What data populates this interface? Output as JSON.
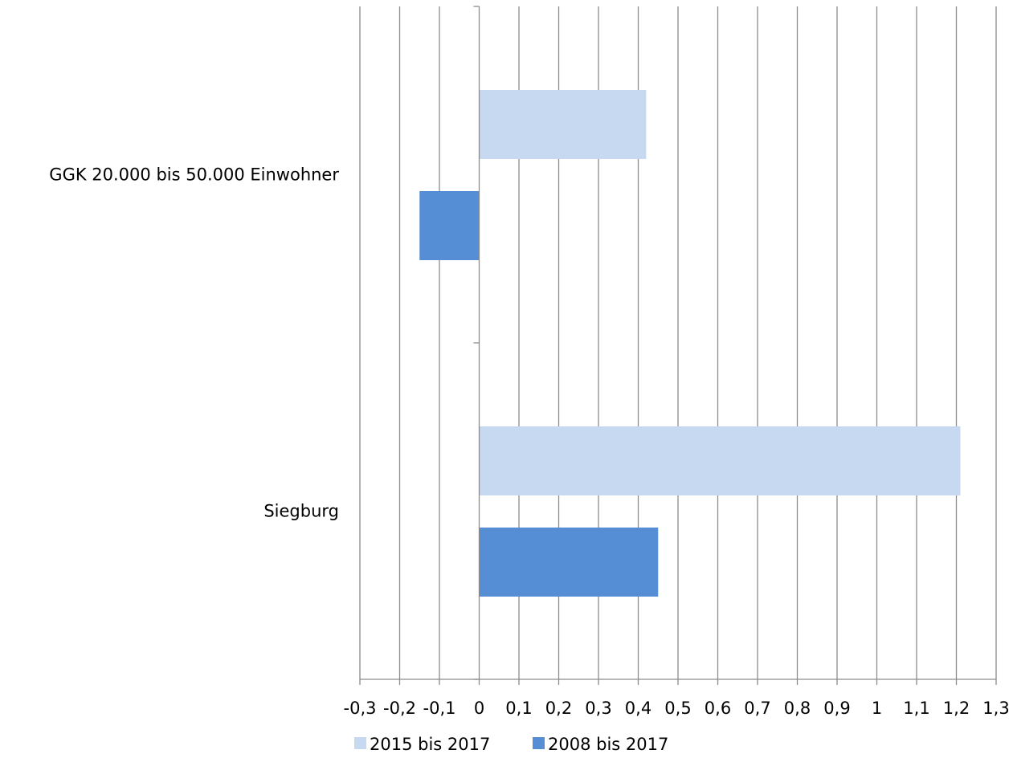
{
  "chart_data": {
    "type": "bar",
    "orientation": "horizontal",
    "title": "",
    "xlabel": "",
    "ylabel": "",
    "categories": [
      "GGK 20.000 bis 50.000 Einwohner",
      "Siegburg"
    ],
    "series": [
      {
        "name": "2015 bis 2017",
        "color": "#c6d9f1",
        "values": [
          0.42,
          1.21
        ]
      },
      {
        "name": "2008 bis 2017",
        "color": "#558ed5",
        "values": [
          -0.15,
          0.45
        ]
      }
    ],
    "xlim": [
      -0.3,
      1.3
    ],
    "xticks": [
      -0.3,
      -0.2,
      -0.1,
      0,
      0.1,
      0.2,
      0.3,
      0.4,
      0.5,
      0.6,
      0.7,
      0.8,
      0.9,
      1,
      1.1,
      1.2,
      1.3
    ],
    "xtick_labels": [
      "-0,3",
      "-0,2",
      "-0,1",
      "0",
      "0,1",
      "0,2",
      "0,3",
      "0,4",
      "0,5",
      "0,6",
      "0,7",
      "0,8",
      "0,9",
      "1",
      "1,1",
      "1,2",
      "1,3"
    ],
    "grid": true,
    "legend_position": "bottom"
  }
}
